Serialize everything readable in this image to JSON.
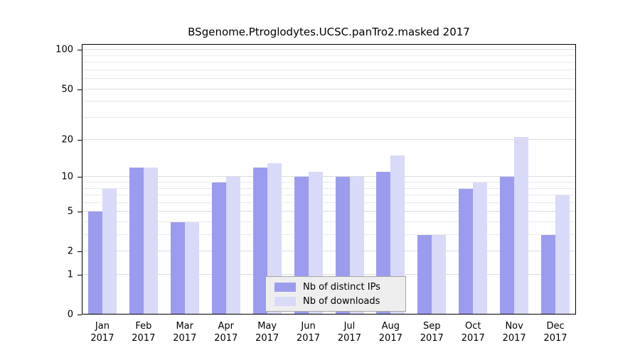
{
  "chart_data": {
    "type": "bar",
    "title": "BSgenome.Ptroglodytes.UCSC.panTro2.masked 2017",
    "year_label": "2017",
    "categories": [
      "Jan",
      "Feb",
      "Mar",
      "Apr",
      "May",
      "Jun",
      "Jul",
      "Aug",
      "Sep",
      "Oct",
      "Nov",
      "Dec"
    ],
    "series": [
      {
        "name": "Nb of distinct IPs",
        "color": "#9c9cee",
        "values": [
          5,
          12,
          4,
          9,
          12,
          10,
          10,
          11,
          3,
          8,
          10,
          3
        ]
      },
      {
        "name": "Nb of downloads",
        "color": "#d9d9f8",
        "values": [
          8,
          12,
          4,
          10,
          13,
          11,
          10,
          15,
          3,
          9,
          21,
          7
        ]
      }
    ],
    "yscale": "log1p",
    "ylim": [
      0,
      111
    ],
    "yticks": [
      0,
      1,
      2,
      5,
      10,
      20,
      50,
      100
    ],
    "minor_gridlines": [
      1,
      2,
      3,
      4,
      5,
      6,
      7,
      8,
      9,
      10,
      20,
      30,
      40,
      50,
      60,
      70,
      80,
      90,
      100
    ],
    "legend_position": "inside-bottom-center",
    "grid": "horizontal",
    "colors": {
      "gridline": "#e9e9e9",
      "axis": "#000000",
      "legend_background": "#eeeeee"
    }
  }
}
